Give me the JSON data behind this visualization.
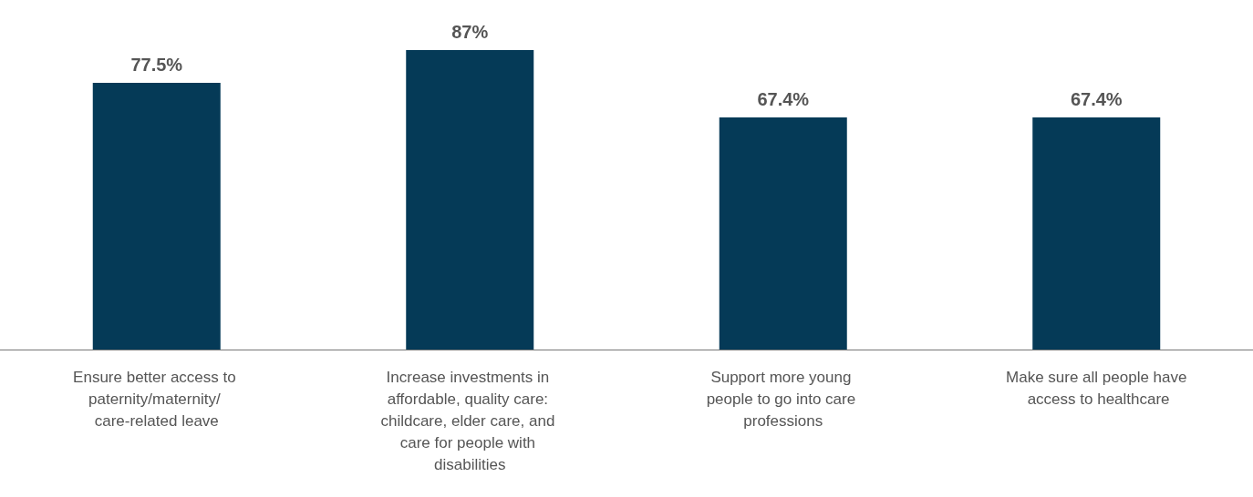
{
  "chart_data": {
    "type": "bar",
    "categories": [
      "Ensure better access to paternity/maternity/ care-related leave",
      "Increase investments in affordable, quality care: childcare, elder care, and care for people with disabilities",
      "Support more young people to go into care professions",
      "Make sure all people have access to healthcare"
    ],
    "values": [
      77.5,
      87,
      67.4,
      67.4
    ],
    "value_labels": [
      "77.5%",
      "87%",
      "67.4%",
      "67.4%"
    ],
    "color": "#053a57"
  }
}
